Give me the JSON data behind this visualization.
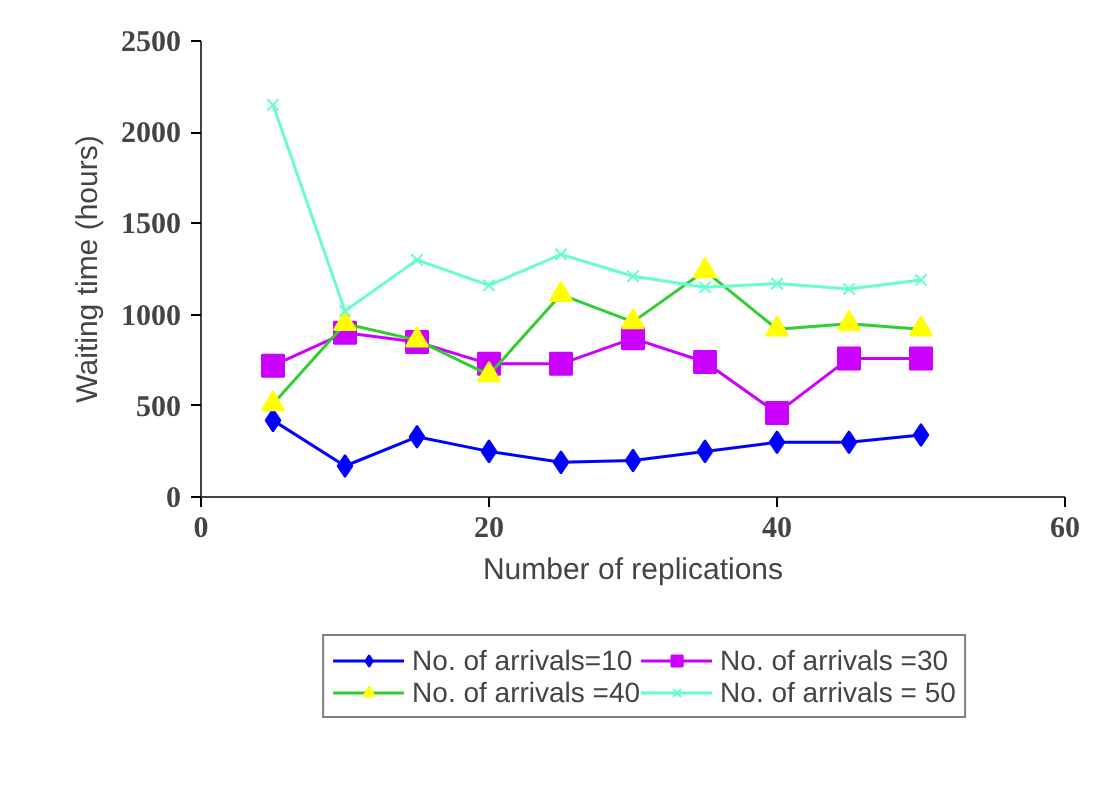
{
  "chart_data": {
    "type": "line",
    "xlabel": "Number of replications",
    "ylabel": "Waiting time (hours)",
    "x": [
      5,
      10,
      15,
      20,
      25,
      30,
      35,
      40,
      45,
      50
    ],
    "xlim": [
      0,
      60
    ],
    "xticks": [
      0,
      20,
      40,
      60
    ],
    "ylim": [
      0,
      2500
    ],
    "yticks": [
      0,
      500,
      1000,
      1500,
      2000,
      2500
    ],
    "grid": false,
    "legend": "bottom",
    "series": [
      {
        "name": "No. of arrivals=10",
        "color": "#0000ff",
        "marker": "diamond",
        "values": [
          420,
          170,
          330,
          250,
          190,
          200,
          250,
          300,
          300,
          340
        ]
      },
      {
        "name": "No. of arrivals =30",
        "color": "#cc00ff",
        "marker": "square",
        "values": [
          720,
          900,
          850,
          730,
          730,
          870,
          740,
          460,
          760,
          760
        ]
      },
      {
        "name": "No. of arrivals =40",
        "color": "#33cc33",
        "marker": "triangle",
        "values": [
          510,
          950,
          860,
          670,
          1110,
          960,
          1240,
          920,
          950,
          920
        ]
      },
      {
        "name": "No. of arrivals = 50",
        "color": "#66ffcc",
        "marker": "cross",
        "values": [
          2150,
          1020,
          1300,
          1160,
          1330,
          1210,
          1150,
          1170,
          1140,
          1190
        ]
      }
    ]
  }
}
